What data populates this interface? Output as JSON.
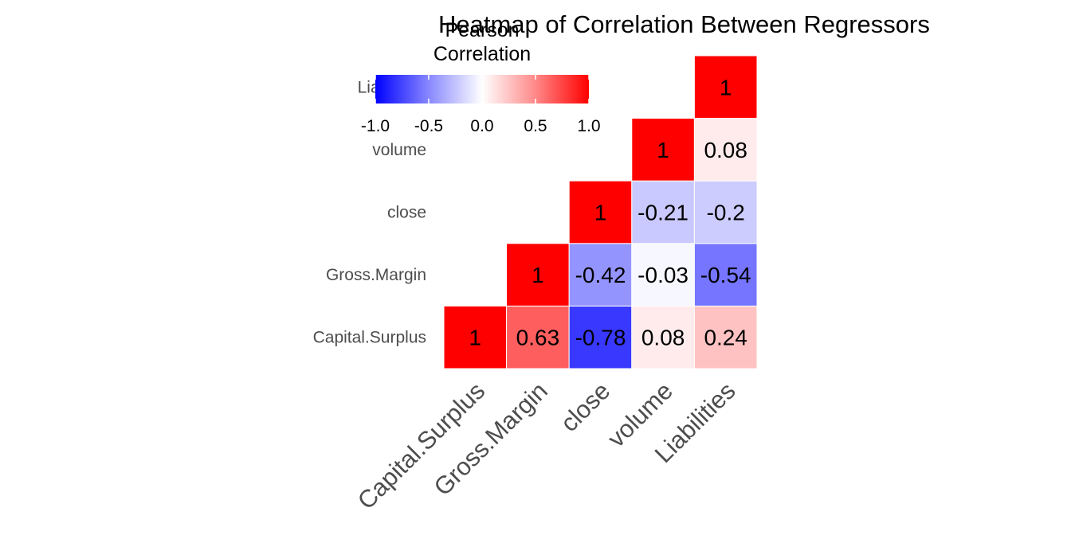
{
  "chart_data": {
    "type": "heatmap",
    "title": "Heatmap of Correlation Between Regressors",
    "variables": [
      "Capital.Surplus",
      "Gross.Margin",
      "close",
      "volume",
      "Liabilities"
    ],
    "matrix": [
      [
        1,
        0.63,
        -0.78,
        0.08,
        0.24
      ],
      [
        0.63,
        1,
        -0.42,
        -0.03,
        -0.54
      ],
      [
        -0.78,
        -0.42,
        1,
        -0.21,
        -0.2
      ],
      [
        0.08,
        -0.03,
        -0.21,
        1,
        0.08
      ],
      [
        0.24,
        -0.54,
        -0.2,
        0.08,
        1
      ]
    ],
    "cell_labels": [
      [
        "1",
        "0.63",
        "-0.78",
        "0.08",
        "0.24"
      ],
      [
        "",
        "1",
        "-0.42",
        "-0.03",
        "-0.54"
      ],
      [
        "",
        "",
        "1",
        "-0.21",
        "-0.2"
      ],
      [
        "",
        "",
        "",
        "1",
        "0.08"
      ],
      [
        "",
        "",
        "",
        "",
        "1"
      ]
    ],
    "display": "upper triangle",
    "x_tick_labels": [
      "Capital.Surplus",
      "Gross.Margin",
      "close",
      "volume",
      "Liabilities"
    ],
    "y_tick_labels": [
      "Capital.Surplus",
      "Gross.Margin",
      "close",
      "volume",
      "Liabilities"
    ],
    "legend": {
      "title": "Pearson\nCorrelation",
      "placement": "top, horizontal",
      "limits": [
        -1,
        1
      ],
      "ticks": [
        "-1.0",
        "-0.5",
        "0.0",
        "0.5",
        "1.0"
      ],
      "colors": {
        "low": "#0000ff",
        "mid": "#ffffff",
        "high": "#ff0000"
      }
    },
    "grid": false,
    "colors": {
      "cell_border": "#ffffff",
      "text": "#000000",
      "axis_text": "#4d4d4d"
    }
  }
}
